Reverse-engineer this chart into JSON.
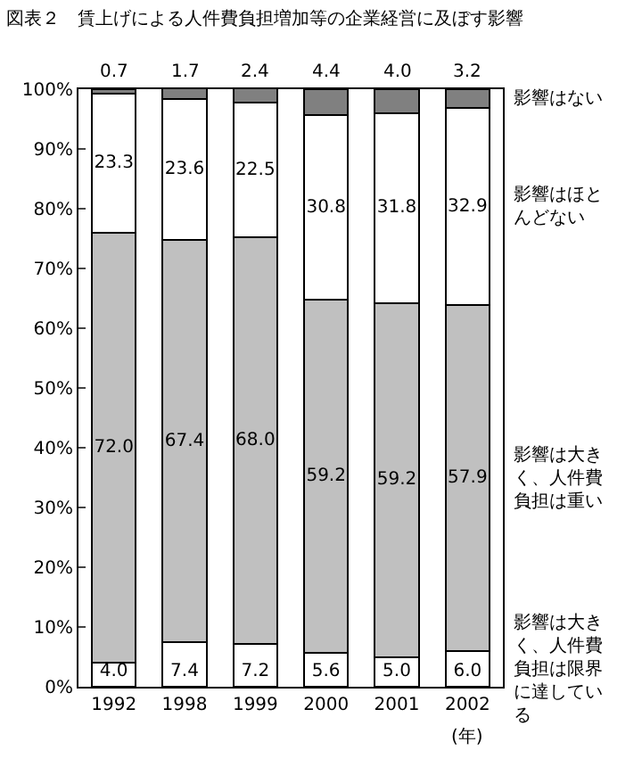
{
  "chart_data": {
    "type": "bar",
    "stacked": true,
    "title": "図表２　賃上げによる人件費負担増加等の企業経営に及ぼす影響",
    "categories": [
      "1992",
      "1998",
      "1999",
      "2000",
      "2001",
      "2002"
    ],
    "series": [
      {
        "name": "影響は大きく、人件費負担は限界に達している",
        "color": "#ffffff",
        "values": [
          4.0,
          7.4,
          7.2,
          5.6,
          5.0,
          6.0
        ],
        "value_labels": [
          "4.0",
          "7.4",
          "7.2",
          "5.6",
          "5.0",
          "6.0"
        ]
      },
      {
        "name": "影響は大きく、人件費負担は重い",
        "color": "#c0c0c0",
        "values": [
          72.0,
          67.4,
          68.0,
          59.2,
          59.2,
          57.9
        ],
        "value_labels": [
          "72.0",
          "67.4",
          "68.0",
          "59.2",
          "59.2",
          "57.9"
        ]
      },
      {
        "name": "影響はほとんどない",
        "color": "#ffffff",
        "values": [
          23.3,
          23.6,
          22.5,
          30.8,
          31.8,
          32.9
        ],
        "value_labels": [
          "23.3",
          "23.6",
          "22.5",
          "30.8",
          "31.8",
          "32.9"
        ]
      },
      {
        "name": "影響はない",
        "color": "#808080",
        "values": [
          0.7,
          1.7,
          2.4,
          4.4,
          4.0,
          3.2
        ],
        "value_labels": [
          "0.7",
          "1.7",
          "2.4",
          "4.4",
          "4.0",
          "3.2"
        ]
      }
    ],
    "ylim": [
      0,
      100
    ],
    "yticks": [
      {
        "value": 0,
        "label": "0%"
      },
      {
        "value": 10,
        "label": "10%"
      },
      {
        "value": 20,
        "label": "20%"
      },
      {
        "value": 30,
        "label": "30%"
      },
      {
        "value": 40,
        "label": "40%"
      },
      {
        "value": 50,
        "label": "50%"
      },
      {
        "value": 60,
        "label": "60%"
      },
      {
        "value": 70,
        "label": "70%"
      },
      {
        "value": 80,
        "label": "80%"
      },
      {
        "value": 90,
        "label": "90%"
      },
      {
        "value": 100,
        "label": "100%"
      }
    ],
    "annotations": [
      "(年)"
    ]
  }
}
